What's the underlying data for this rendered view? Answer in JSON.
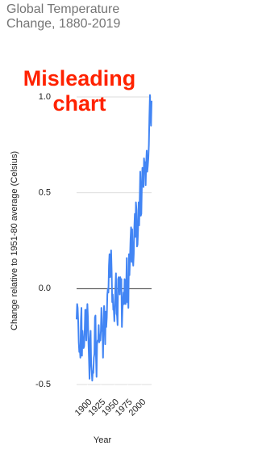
{
  "chart_data": {
    "type": "line",
    "title": "Global Temperature Change, 1880-2019",
    "annotation": "Misleading chart",
    "x_label": "Year",
    "y_label": "Change relative to 1951-80 average (Celsius)",
    "x": [
      1880,
      1881,
      1882,
      1883,
      1884,
      1885,
      1886,
      1887,
      1888,
      1889,
      1890,
      1891,
      1892,
      1893,
      1894,
      1895,
      1896,
      1897,
      1898,
      1899,
      1900,
      1901,
      1902,
      1903,
      1904,
      1905,
      1906,
      1907,
      1908,
      1909,
      1910,
      1911,
      1912,
      1913,
      1914,
      1915,
      1916,
      1917,
      1918,
      1919,
      1920,
      1921,
      1922,
      1923,
      1924,
      1925,
      1926,
      1927,
      1928,
      1929,
      1930,
      1931,
      1932,
      1933,
      1934,
      1935,
      1936,
      1937,
      1938,
      1939,
      1940,
      1941,
      1942,
      1943,
      1944,
      1945,
      1946,
      1947,
      1948,
      1949,
      1950,
      1951,
      1952,
      1953,
      1954,
      1955,
      1956,
      1957,
      1958,
      1959,
      1960,
      1961,
      1962,
      1963,
      1964,
      1965,
      1966,
      1967,
      1968,
      1969,
      1970,
      1971,
      1972,
      1973,
      1974,
      1975,
      1976,
      1977,
      1978,
      1979,
      1980,
      1981,
      1982,
      1983,
      1984,
      1985,
      1986,
      1987,
      1988,
      1989,
      1990,
      1991,
      1992,
      1993,
      1994,
      1995,
      1996,
      1997,
      1998,
      1999,
      2000,
      2001,
      2002,
      2003,
      2004,
      2005,
      2006,
      2007,
      2008,
      2009,
      2010,
      2011,
      2012,
      2013,
      2014,
      2015,
      2016,
      2017,
      2018,
      2019
    ],
    "series": [
      {
        "color": "#4285f4",
        "values": [
          -0.16,
          -0.08,
          -0.1,
          -0.17,
          -0.28,
          -0.33,
          -0.31,
          -0.36,
          -0.17,
          -0.1,
          -0.35,
          -0.22,
          -0.27,
          -0.31,
          -0.3,
          -0.22,
          -0.11,
          -0.11,
          -0.27,
          -0.17,
          -0.08,
          -0.15,
          -0.28,
          -0.37,
          -0.47,
          -0.26,
          -0.22,
          -0.39,
          -0.43,
          -0.48,
          -0.43,
          -0.44,
          -0.36,
          -0.34,
          -0.15,
          -0.14,
          -0.36,
          -0.46,
          -0.29,
          -0.27,
          -0.27,
          -0.19,
          -0.28,
          -0.26,
          -0.27,
          -0.22,
          -0.1,
          -0.22,
          -0.2,
          -0.36,
          -0.16,
          -0.09,
          -0.16,
          -0.29,
          -0.12,
          -0.2,
          -0.15,
          -0.03,
          0.0,
          -0.02,
          0.12,
          0.18,
          0.06,
          0.09,
          0.2,
          0.09,
          -0.07,
          -0.03,
          -0.11,
          -0.11,
          -0.17,
          -0.07,
          0.01,
          0.08,
          -0.13,
          -0.14,
          -0.19,
          0.05,
          0.06,
          0.03,
          -0.03,
          0.06,
          0.03,
          0.05,
          -0.2,
          -0.11,
          -0.06,
          -0.02,
          -0.08,
          0.05,
          0.03,
          -0.08,
          0.01,
          0.16,
          -0.07,
          -0.01,
          -0.1,
          0.18,
          0.07,
          0.16,
          0.26,
          0.32,
          0.14,
          0.31,
          0.16,
          0.12,
          0.18,
          0.32,
          0.39,
          0.27,
          0.45,
          0.41,
          0.22,
          0.23,
          0.31,
          0.45,
          0.33,
          0.46,
          0.61,
          0.38,
          0.39,
          0.54,
          0.63,
          0.62,
          0.53,
          0.68,
          0.64,
          0.66,
          0.54,
          0.65,
          0.72,
          0.61,
          0.64,
          0.68,
          0.75,
          0.9,
          1.01,
          0.92,
          0.85,
          0.98
        ]
      }
    ],
    "xlim": [
      1880,
      2019
    ],
    "xticks": [
      1900,
      1925,
      1950,
      1975,
      2000
    ],
    "ylim": [
      -0.5,
      1.0
    ],
    "yticks": [
      -0.5,
      {
        "value": 0,
        "label": "0.0"
      },
      0.5,
      {
        "value": 1,
        "label": "1.0"
      }
    ],
    "grid": true
  }
}
